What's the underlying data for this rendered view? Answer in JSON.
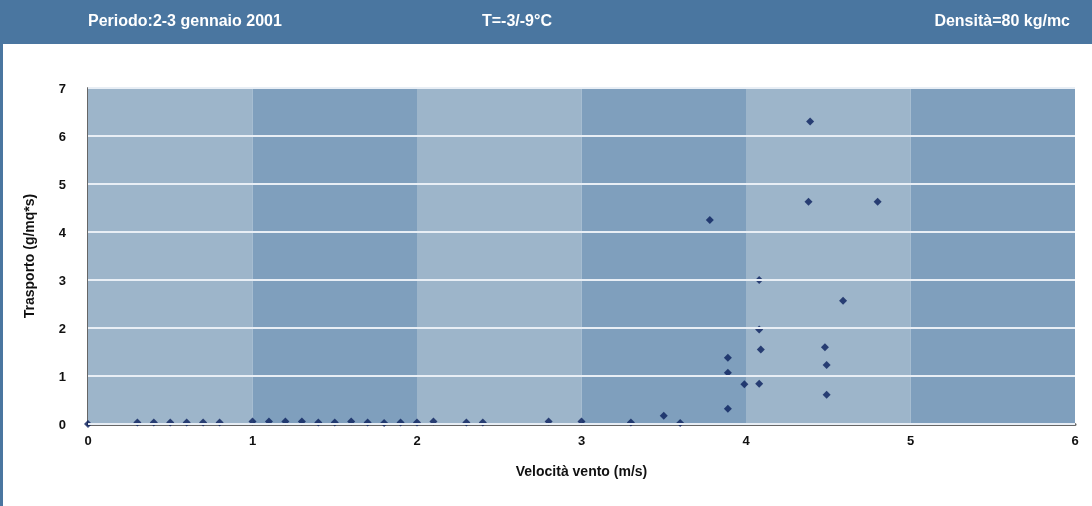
{
  "chart_data": {
    "type": "scatter",
    "title": "Periodo:2-3 gennaio 2001",
    "annotations": [
      "T=-3/-9°C",
      "Densità=80 kg/mc"
    ],
    "xlabel": "Velocità vento (m/s)",
    "ylabel": "Trasporto (g/mq*s)",
    "x": [
      0,
      0.3,
      0.4,
      0.5,
      0.6,
      0.7,
      0.8,
      1.0,
      1.1,
      1.2,
      1.3,
      1.4,
      1.5,
      1.6,
      1.7,
      1.8,
      1.9,
      2.0,
      2.1,
      2.3,
      2.4,
      2.8,
      3.0,
      3.3,
      3.5,
      3.6,
      3.78,
      3.89,
      3.89,
      3.89,
      3.99,
      4.08,
      4.08,
      4.08,
      4.09,
      4.38,
      4.39,
      4.48,
      4.49,
      4.49,
      4.59,
      4.8
    ],
    "series": [
      {
        "color": "#0a1f5c",
        "values": [
          0,
          0.03,
          0.03,
          0.03,
          0.03,
          0.03,
          0.03,
          0.05,
          0.05,
          0.05,
          0.05,
          0.03,
          0.03,
          0.05,
          0.03,
          0.02,
          0.03,
          0.03,
          0.05,
          0.03,
          0.03,
          0.05,
          0.05,
          0.03,
          0.17,
          0.02,
          4.25,
          0.32,
          1.07,
          1.38,
          0.83,
          0.84,
          1.97,
          3.0,
          1.55,
          4.63,
          6.3,
          1.6,
          1.23,
          0.61,
          2.57,
          4.63
        ]
      }
    ],
    "xlim": [
      0,
      6
    ],
    "xticks": [
      0,
      1,
      2,
      3,
      4,
      5,
      6
    ],
    "ylim": [
      0,
      7
    ],
    "yticks": [
      0,
      1,
      2,
      3,
      4,
      5,
      6,
      7
    ],
    "grid": "y",
    "marker": "diamond",
    "bands": [
      {
        "axis": "x",
        "from": 0,
        "to": 1,
        "color": "#9db5ca"
      },
      {
        "axis": "x",
        "from": 1,
        "to": 2,
        "color": "#7f9fbd"
      },
      {
        "axis": "x",
        "from": 2,
        "to": 3,
        "color": "#9db5ca"
      },
      {
        "axis": "x",
        "from": 3,
        "to": 4,
        "color": "#7f9fbd"
      },
      {
        "axis": "x",
        "from": 4,
        "to": 5,
        "color": "#9db5ca"
      },
      {
        "axis": "x",
        "from": 5,
        "to": 6,
        "color": "#7f9fbd"
      }
    ]
  }
}
